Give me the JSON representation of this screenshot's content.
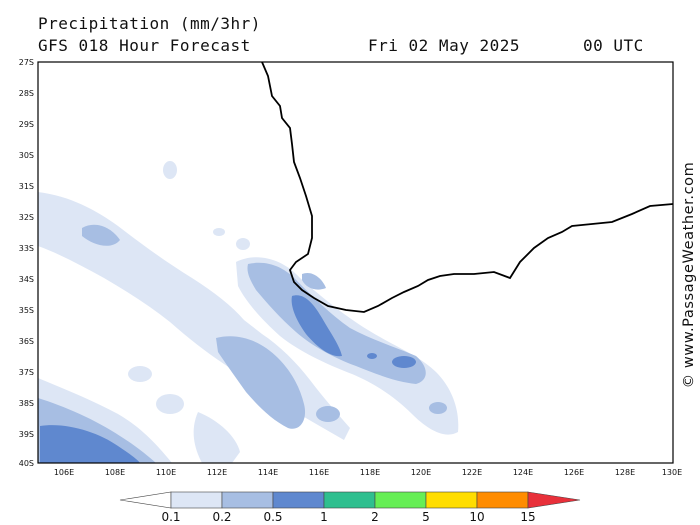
{
  "header": {
    "title": "Precipitation (mm/3hr)",
    "subtitle": "GFS 018 Hour Forecast",
    "date": "Fri 02 May 2025",
    "time": "00 UTC"
  },
  "credit": "© www.PassageWeather.com",
  "map": {
    "lat_labels": [
      "27S",
      "28S",
      "29S",
      "30S",
      "31S",
      "32S",
      "33S",
      "34S",
      "35S",
      "36S",
      "37S",
      "38S",
      "39S",
      "40S"
    ],
    "lon_labels": [
      "106E",
      "108E",
      "110E",
      "112E",
      "114E",
      "116E",
      "118E",
      "120E",
      "122E",
      "124E",
      "126E",
      "128E",
      "130E"
    ]
  },
  "legend": {
    "tick_labels": [
      "0.1",
      "0.2",
      "0.5",
      "1",
      "2",
      "5",
      "10",
      "15"
    ],
    "colors": [
      "#ffffff",
      "#dde6f5",
      "#a7bee3",
      "#5f88cf",
      "#2fbf8f",
      "#66ee55",
      "#ffdd00",
      "#ff8c00",
      "#e8303a"
    ]
  }
}
